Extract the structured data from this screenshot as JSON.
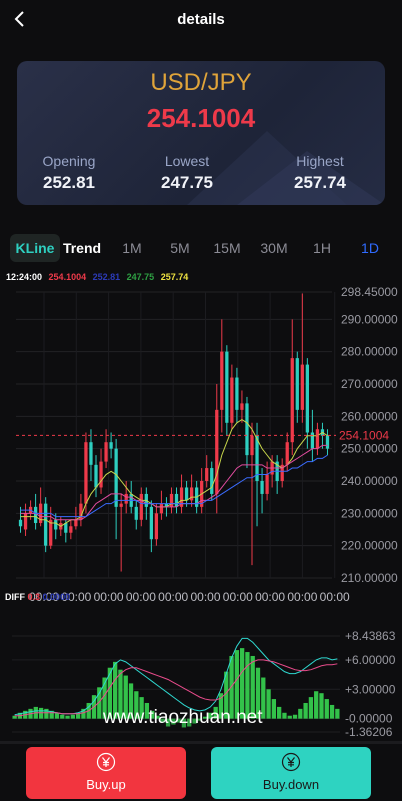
{
  "header": {
    "title": "details",
    "back_icon": "chevron-left-icon"
  },
  "card": {
    "pair": "USD/JPY",
    "price": "254.1004",
    "opening_label": "Opening",
    "opening_value": "252.81",
    "lowest_label": "Lowest",
    "lowest_value": "247.75",
    "highest_label": "Highest",
    "highest_value": "257.74"
  },
  "tabs": [
    "KLine",
    "Trend",
    "1M",
    "5M",
    "15M",
    "30M",
    "1H",
    "1D"
  ],
  "active_tab": "1D",
  "legend": {
    "time": "12:24:00",
    "v1": "254.1004",
    "v2": "252.81",
    "v3": "247.75",
    "v4": "257.74"
  },
  "colors": {
    "up": "#ee3a4a",
    "down": "#2ecfc0",
    "accent": "#2f6bff",
    "gold": "#e0a43a"
  },
  "chart_data": [
    {
      "type": "candlestick",
      "y_ticks": [
        "298.45000",
        "290.00000",
        "280.00000",
        "270.00000",
        "260.00000",
        "250.00000",
        "240.00000",
        "230.00000",
        "220.00000",
        "210.00000"
      ],
      "x_ticks": [
        "00:00",
        "00:00",
        "00:00",
        "00:00",
        "00:00",
        "00:00",
        "00:00",
        "00:00",
        "00:00",
        "00:00"
      ],
      "ylim": [
        210,
        298.45
      ],
      "current_price_label": "254.1004",
      "current_price": 254.1004,
      "candles": [
        [
          228,
          226,
          232,
          224
        ],
        [
          225,
          230,
          233,
          223
        ],
        [
          230,
          232,
          234,
          228
        ],
        [
          232,
          227,
          236,
          225
        ],
        [
          227,
          233,
          238,
          226
        ],
        [
          233,
          220,
          235,
          218
        ],
        [
          220,
          228,
          232,
          219
        ],
        [
          228,
          225,
          230,
          222
        ],
        [
          225,
          227,
          229,
          223
        ],
        [
          227,
          224,
          228,
          221
        ],
        [
          224,
          226,
          228,
          222
        ],
        [
          226,
          228,
          232,
          225
        ],
        [
          228,
          233,
          236,
          226
        ],
        [
          233,
          252,
          255,
          230
        ],
        [
          252,
          245,
          256,
          240
        ],
        [
          245,
          238,
          248,
          235
        ],
        [
          238,
          246,
          250,
          236
        ],
        [
          246,
          252,
          256,
          244
        ],
        [
          252,
          250,
          255,
          247
        ],
        [
          250,
          232,
          253,
          222
        ],
        [
          232,
          233,
          236,
          212
        ],
        [
          233,
          236,
          240,
          230
        ],
        [
          236,
          232,
          240,
          230
        ],
        [
          232,
          228,
          234,
          225
        ],
        [
          228,
          236,
          238,
          226
        ],
        [
          236,
          232,
          238,
          228
        ],
        [
          232,
          222,
          234,
          218
        ],
        [
          222,
          230,
          233,
          220
        ],
        [
          230,
          233,
          237,
          228
        ],
        [
          233,
          232,
          235,
          229
        ],
        [
          232,
          236,
          238,
          230
        ],
        [
          236,
          232,
          238,
          230
        ],
        [
          232,
          238,
          242,
          230
        ],
        [
          238,
          234,
          240,
          232
        ],
        [
          234,
          238,
          242,
          232
        ],
        [
          238,
          232,
          240,
          230
        ],
        [
          232,
          240,
          244,
          230
        ],
        [
          240,
          244,
          248,
          238
        ],
        [
          244,
          236,
          246,
          234
        ],
        [
          236,
          262,
          270,
          230
        ],
        [
          262,
          280,
          290,
          255
        ],
        [
          280,
          258,
          282,
          254
        ],
        [
          258,
          272,
          276,
          256
        ],
        [
          272,
          262,
          275,
          258
        ],
        [
          262,
          264,
          268,
          258
        ],
        [
          264,
          248,
          266,
          244
        ],
        [
          248,
          254,
          258,
          214
        ],
        [
          254,
          240,
          258,
          226
        ],
        [
          240,
          236,
          244,
          230
        ],
        [
          236,
          242,
          246,
          234
        ],
        [
          242,
          246,
          248,
          238
        ],
        [
          246,
          240,
          248,
          236
        ],
        [
          240,
          245,
          247,
          238
        ],
        [
          245,
          252,
          255,
          243
        ],
        [
          252,
          278,
          290,
          248
        ],
        [
          278,
          262,
          280,
          258
        ],
        [
          262,
          276,
          298,
          258
        ],
        [
          276,
          255,
          278,
          250
        ],
        [
          255,
          250,
          262,
          246
        ],
        [
          250,
          256,
          258,
          248
        ],
        [
          256,
          254,
          258,
          250
        ],
        [
          254,
          250,
          256,
          248
        ]
      ],
      "ma_series": [
        {
          "color": "#c8d64b",
          "values": [
            229,
            229,
            229,
            229,
            228,
            228,
            227,
            227,
            226,
            227,
            228,
            228,
            229,
            233,
            236,
            238,
            240,
            242,
            243,
            242,
            240,
            238,
            236,
            235,
            234,
            234,
            233,
            232,
            232,
            232,
            233,
            233,
            234,
            234,
            235,
            235,
            236,
            237,
            238,
            242,
            248,
            252,
            256,
            258,
            259,
            258,
            256,
            253,
            250,
            248,
            246,
            245,
            244,
            245,
            247,
            250,
            252,
            254,
            254,
            254,
            255,
            254
          ]
        },
        {
          "color": "#e24ca0",
          "values": [
            230,
            230,
            230,
            230,
            229,
            229,
            229,
            228,
            228,
            228,
            228,
            228,
            228,
            229,
            231,
            233,
            234,
            235,
            236,
            236,
            236,
            235,
            235,
            234,
            234,
            233,
            233,
            232,
            232,
            232,
            232,
            232,
            233,
            233,
            233,
            233,
            234,
            234,
            235,
            236,
            238,
            240,
            242,
            244,
            245,
            245,
            245,
            245,
            245,
            244,
            244,
            244,
            244,
            245,
            246,
            247,
            248,
            249,
            250,
            250,
            251,
            251
          ]
        },
        {
          "color": "#3b6cff",
          "values": [
            231,
            231,
            231,
            230,
            230,
            230,
            230,
            229,
            229,
            229,
            229,
            229,
            229,
            229,
            230,
            231,
            232,
            233,
            233,
            234,
            234,
            234,
            234,
            234,
            233,
            233,
            233,
            233,
            233,
            233,
            233,
            233,
            233,
            233,
            233,
            233,
            233,
            234,
            234,
            235,
            236,
            237,
            238,
            239,
            240,
            241,
            241,
            242,
            242,
            242,
            243,
            243,
            243,
            243,
            244,
            244,
            245,
            246,
            246,
            247,
            247,
            248
          ]
        }
      ]
    },
    {
      "type": "bar",
      "name": "DIFF",
      "y_ticks": [
        "+8.43863",
        "+6.00000",
        "+3.00000",
        "-0.00000",
        "-1.36206"
      ],
      "ylim": [
        -1.36206,
        8.43863
      ],
      "values": [
        0.3,
        0.6,
        0.8,
        1.0,
        1.2,
        1.1,
        1.0,
        0.8,
        0.6,
        0.4,
        0.3,
        0.4,
        0.6,
        1.0,
        1.6,
        2.4,
        3.2,
        4.2,
        5.2,
        5.8,
        5.0,
        4.4,
        3.6,
        2.8,
        2.2,
        1.6,
        0.8,
        0.3,
        -0.4,
        -0.8,
        -0.6,
        -0.4,
        -0.9,
        -0.8,
        -0.5,
        -0.2,
        0.2,
        0.6,
        1.2,
        2.6,
        4.8,
        6.4,
        7.0,
        7.2,
        6.8,
        6.4,
        5.2,
        4.2,
        3.0,
        2.0,
        1.2,
        0.6,
        0.3,
        0.4,
        1.0,
        1.6,
        2.2,
        2.8,
        2.6,
        2.0,
        1.4,
        1.0
      ],
      "lines": [
        {
          "color": "#2fd8d0",
          "values": [
            0.4,
            0.5,
            0.6,
            0.7,
            0.8,
            0.8,
            0.8,
            0.7,
            0.6,
            0.5,
            0.5,
            0.5,
            0.6,
            0.8,
            1.2,
            1.8,
            2.6,
            3.6,
            4.6,
            5.6,
            6.0,
            5.8,
            5.4,
            5.0,
            4.6,
            4.2,
            3.8,
            3.4,
            3.0,
            2.6,
            2.2,
            1.8,
            1.4,
            1.1,
            0.9,
            0.8,
            0.9,
            1.2,
            1.8,
            3.0,
            4.6,
            6.2,
            7.4,
            8.2,
            8.2,
            7.8,
            7.2,
            6.6,
            6.0,
            5.6,
            5.2,
            4.8,
            4.6,
            4.6,
            4.8,
            5.2,
            5.6,
            6.0,
            6.2,
            6.2,
            6.0,
            6.1
          ]
        },
        {
          "color": "#e94c8c",
          "values": [
            0.3,
            0.3,
            0.4,
            0.5,
            0.6,
            0.6,
            0.6,
            0.6,
            0.6,
            0.5,
            0.5,
            0.5,
            0.5,
            0.6,
            0.8,
            1.2,
            1.7,
            2.4,
            3.2,
            4.0,
            4.6,
            5.0,
            5.2,
            5.2,
            5.0,
            4.8,
            4.6,
            4.4,
            4.2,
            4.0,
            3.7,
            3.4,
            3.1,
            2.8,
            2.5,
            2.2,
            2.0,
            1.9,
            1.9,
            2.1,
            2.6,
            3.3,
            4.0,
            4.8,
            5.4,
            5.8,
            6.0,
            6.0,
            5.9,
            5.8,
            5.6,
            5.4,
            5.2,
            5.0,
            4.9,
            4.9,
            5.0,
            5.2,
            5.4,
            5.5,
            5.5,
            5.6
          ]
        }
      ]
    }
  ],
  "diff_legend": {
    "label": "DIFF",
    "v1": "0.3",
    "v2": "0.0000"
  },
  "watermark": "www.tiaozhuan.net",
  "buttons": {
    "buy_up": "Buy.up",
    "buy_down": "Buy.down"
  }
}
